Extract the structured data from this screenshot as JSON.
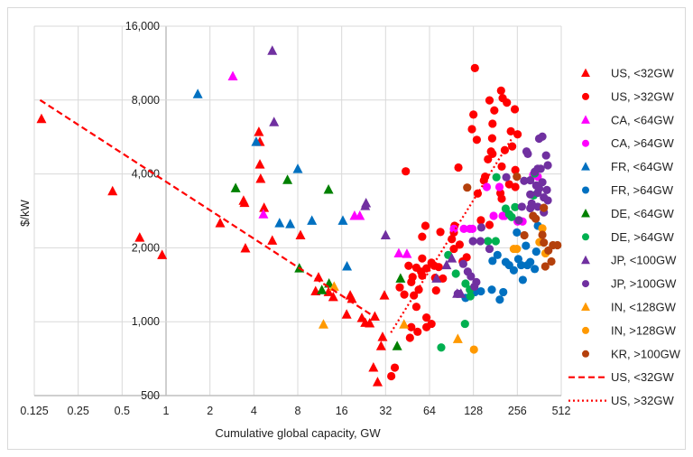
{
  "chart_data": {
    "type": "scatter",
    "title": "",
    "xlabel": "Cumulative global capacity, GW",
    "ylabel": "$/kW",
    "x_scale": "log2",
    "y_scale": "log2",
    "xlim": [
      0.125,
      512
    ],
    "ylim": [
      500,
      16000
    ],
    "x_ticks": [
      "0.125",
      "0.25",
      "0.5",
      "1",
      "2",
      "4",
      "8",
      "16",
      "32",
      "64",
      "128",
      "256",
      "512"
    ],
    "x_tick_values": [
      0.125,
      0.25,
      0.5,
      1,
      2,
      4,
      8,
      16,
      32,
      64,
      128,
      256,
      512
    ],
    "y_ticks": [
      "500",
      "1,000",
      "2,000",
      "4,000",
      "8,000",
      "16,000"
    ],
    "y_tick_values": [
      500,
      1000,
      2000,
      4000,
      8000,
      16000
    ],
    "grid": true,
    "legend_position": "right",
    "series": [
      {
        "name": "US, <32GW",
        "marker": "triangle",
        "color": "#FF0000",
        "points": [
          [
            0.14,
            6700
          ],
          [
            0.43,
            3400
          ],
          [
            0.66,
            2200
          ],
          [
            0.94,
            1870
          ],
          [
            2.35,
            2520
          ],
          [
            3.4,
            3110
          ],
          [
            3.45,
            3050
          ],
          [
            3.5,
            1990
          ],
          [
            4.33,
            5930
          ],
          [
            4.4,
            5400
          ],
          [
            4.4,
            4370
          ],
          [
            4.45,
            3820
          ],
          [
            4.7,
            2910
          ],
          [
            5.35,
            2140
          ],
          [
            8.35,
            2250
          ],
          [
            11.1,
            1515
          ],
          [
            10.6,
            1330
          ],
          [
            13,
            1320
          ],
          [
            14,
            1260
          ],
          [
            18.3,
            1280
          ],
          [
            18.8,
            1240
          ],
          [
            17.3,
            1070
          ],
          [
            22,
            1035
          ],
          [
            23.2,
            990
          ],
          [
            24.9,
            985
          ],
          [
            27,
            1050
          ],
          [
            26.4,
            650
          ],
          [
            28.2,
            567
          ],
          [
            31.4,
            1280
          ],
          [
            30.5,
            866
          ],
          [
            29.8,
            795
          ]
        ]
      },
      {
        "name": "US, >32GW",
        "marker": "circle",
        "color": "#FF0000",
        "points": [
          [
            131,
            10800
          ],
          [
            198,
            8740
          ],
          [
            203,
            8150
          ],
          [
            217,
            7810
          ],
          [
            165,
            7980
          ],
          [
            246,
            7340
          ],
          [
            178,
            7260
          ],
          [
            128,
            6980
          ],
          [
            173,
            6410
          ],
          [
            125,
            6090
          ],
          [
            135,
            5510
          ],
          [
            172,
            5590
          ],
          [
            231,
            5970
          ],
          [
            257,
            5800
          ],
          [
            210,
            5000
          ],
          [
            236,
            5180
          ],
          [
            169,
            4940
          ],
          [
            173,
            4830
          ],
          [
            161,
            4590
          ],
          [
            200,
            4290
          ],
          [
            248,
            4150
          ],
          [
            101,
            4250
          ],
          [
            44,
            4100
          ],
          [
            154,
            3900
          ],
          [
            151,
            3760
          ],
          [
            225,
            3630
          ],
          [
            248,
            3540
          ],
          [
            196,
            3340
          ],
          [
            200,
            3170
          ],
          [
            137,
            3330
          ],
          [
            144,
            2590
          ],
          [
            165,
            2480
          ],
          [
            60,
            2460
          ],
          [
            57,
            2220
          ],
          [
            76,
            2320
          ],
          [
            95,
            2460
          ],
          [
            94,
            2310
          ],
          [
            91,
            2170
          ],
          [
            103,
            2060
          ],
          [
            94,
            1980
          ],
          [
            115,
            1830
          ],
          [
            108,
            1760
          ],
          [
            57,
            1810
          ],
          [
            46,
            1690
          ],
          [
            52,
            1660
          ],
          [
            66,
            1740
          ],
          [
            69,
            1690
          ],
          [
            74,
            1670
          ],
          [
            61,
            1650
          ],
          [
            56,
            1600
          ],
          [
            49,
            1520
          ],
          [
            57,
            1540
          ],
          [
            70,
            1510
          ],
          [
            79,
            1500
          ],
          [
            48,
            1450
          ],
          [
            54,
            1350
          ],
          [
            40,
            1380
          ],
          [
            43,
            1290
          ],
          [
            50,
            1280
          ],
          [
            71,
            1340
          ],
          [
            52,
            1150
          ],
          [
            61,
            1040
          ],
          [
            66,
            980
          ],
          [
            61,
            950
          ],
          [
            48,
            950
          ],
          [
            53,
            910
          ],
          [
            47,
            860
          ],
          [
            37,
            650
          ],
          [
            35,
            600
          ]
        ]
      },
      {
        "name": "CA, <64GW",
        "marker": "triangle",
        "color": "#FF00FF",
        "points": [
          [
            2.87,
            10000
          ],
          [
            4.65,
            2740
          ],
          [
            19.6,
            2700
          ],
          [
            21.3,
            2700
          ],
          [
            39.4,
            1900
          ],
          [
            44.8,
            1890
          ]
        ]
      },
      {
        "name": "CA, >64GW",
        "marker": "circle",
        "color": "#FF00FF",
        "points": [
          [
            329,
            3970
          ],
          [
            353,
            3900
          ],
          [
            158,
            3540
          ],
          [
            193,
            3540
          ],
          [
            176,
            2700
          ],
          [
            203,
            2700
          ],
          [
            210,
            2700
          ],
          [
            257,
            2560
          ],
          [
            278,
            2560
          ],
          [
            94,
            2390
          ],
          [
            110,
            2390
          ],
          [
            121,
            2390
          ],
          [
            126,
            2390
          ]
        ]
      },
      {
        "name": "FR, <64GW",
        "marker": "triangle",
        "color": "#0070C0",
        "points": [
          [
            1.65,
            8460
          ],
          [
            4.15,
            5400
          ],
          [
            8.0,
            4190
          ],
          [
            6.0,
            2520
          ],
          [
            7.1,
            2500
          ],
          [
            10,
            2580
          ],
          [
            16.3,
            2580
          ],
          [
            17.4,
            1680
          ]
        ]
      },
      {
        "name": "FR, >64GW",
        "marker": "circle",
        "color": "#0070C0",
        "points": [
          [
            354,
            2460
          ],
          [
            254,
            2310
          ],
          [
            293,
            2040
          ],
          [
            345,
            1930
          ],
          [
            187,
            1870
          ],
          [
            173,
            1770
          ],
          [
            225,
            1700
          ],
          [
            272,
            1700
          ],
          [
            314,
            1750
          ],
          [
            337,
            1640
          ],
          [
            242,
            1620
          ],
          [
            279,
            1480
          ],
          [
            171,
            1350
          ],
          [
            205,
            1320
          ],
          [
            194,
            1230
          ],
          [
            144,
            1330
          ],
          [
            131,
            1320
          ],
          [
            113,
            1250
          ],
          [
            213,
            1750
          ],
          [
            260,
            1800
          ],
          [
            300,
            1700
          ]
        ]
      },
      {
        "name": "DE, <64GW",
        "marker": "triangle",
        "color": "#008000",
        "points": [
          [
            3.0,
            3500
          ],
          [
            6.8,
            3780
          ],
          [
            13,
            3450
          ],
          [
            8.2,
            1650
          ],
          [
            11.7,
            1345
          ],
          [
            13.1,
            1430
          ],
          [
            40.5,
            1500
          ],
          [
            38.4,
            795
          ]
        ]
      },
      {
        "name": "DE, >64GW",
        "marker": "circle",
        "color": "#00B050",
        "points": [
          [
            184,
            3880
          ],
          [
            337,
            4020
          ],
          [
            331,
            3270
          ],
          [
            213,
            2890
          ],
          [
            225,
            2740
          ],
          [
            234,
            2670
          ],
          [
            247,
            2930
          ],
          [
            161,
            2130
          ],
          [
            182,
            2130
          ],
          [
            86,
            1870
          ],
          [
            97,
            1570
          ],
          [
            113,
            1430
          ],
          [
            121,
            1350
          ],
          [
            122,
            1270
          ],
          [
            112,
            980
          ],
          [
            77,
            785
          ]
        ]
      },
      {
        "name": "JP, <100GW",
        "marker": "triangle",
        "color": "#7030A0",
        "points": [
          [
            5.35,
            12700
          ],
          [
            5.5,
            6500
          ],
          [
            23.5,
            3040
          ],
          [
            23.2,
            2960
          ],
          [
            32,
            2250
          ],
          [
            91,
            1810
          ],
          [
            83.7,
            1700
          ],
          [
            71.5,
            1500
          ],
          [
            99,
            1300
          ],
          [
            105,
            1300
          ]
        ]
      },
      {
        "name": "JP, >100GW",
        "marker": "circle",
        "color": "#7030A0",
        "points": [
          [
            361,
            5570
          ],
          [
            380,
            5680
          ],
          [
            296,
            4940
          ],
          [
            302,
            4830
          ],
          [
            403,
            4760
          ],
          [
            414,
            4340
          ],
          [
            353,
            4200
          ],
          [
            337,
            4080
          ],
          [
            370,
            4200
          ],
          [
            215,
            3880
          ],
          [
            285,
            3750
          ],
          [
            314,
            3770
          ],
          [
            380,
            3700
          ],
          [
            345,
            3590
          ],
          [
            361,
            3490
          ],
          [
            408,
            3440
          ],
          [
            314,
            3300
          ],
          [
            353,
            3350
          ],
          [
            389,
            3210
          ],
          [
            414,
            3120
          ],
          [
            321,
            3030
          ],
          [
            275,
            2940
          ],
          [
            353,
            2940
          ],
          [
            314,
            2900
          ],
          [
            389,
            2790
          ],
          [
            262,
            2590
          ],
          [
            145,
            2420
          ],
          [
            127,
            2130
          ],
          [
            143,
            2130
          ],
          [
            165,
            1980
          ],
          [
            109,
            1720
          ],
          [
            117,
            1600
          ],
          [
            123,
            1530
          ],
          [
            134,
            1450
          ],
          [
            130,
            1390
          ],
          [
            100,
            1300
          ]
        ]
      },
      {
        "name": "IN, <128GW",
        "marker": "triangle",
        "color": "#FF9900",
        "points": [
          [
            12,
            975
          ],
          [
            14.2,
            1390
          ],
          [
            42.8,
            975
          ],
          [
            100,
            850
          ]
        ]
      },
      {
        "name": "IN, >128GW",
        "marker": "circle",
        "color": "#FF9900",
        "points": [
          [
            380,
            2400
          ],
          [
            363,
            2110
          ],
          [
            242,
            1980
          ],
          [
            254,
            1980
          ],
          [
            399,
            1900
          ],
          [
            129,
            770
          ]
        ]
      },
      {
        "name": "KR, >100GW",
        "marker": "circle",
        "color": "#B4400C",
        "points": [
          [
            254,
            3900
          ],
          [
            116,
            3520
          ],
          [
            328,
            2700
          ],
          [
            342,
            2630
          ],
          [
            389,
            2910
          ],
          [
            380,
            2260
          ],
          [
            286,
            2250
          ],
          [
            389,
            2100
          ],
          [
            449,
            2050
          ],
          [
            482,
            2050
          ],
          [
            418,
            1950
          ],
          [
            438,
            1760
          ],
          [
            398,
            1680
          ]
        ]
      },
      {
        "name": "US, <32GW",
        "marker": "dashed-line",
        "color": "#FF0000",
        "points": [
          [
            0.137,
            8000
          ],
          [
            28,
            1030
          ]
        ]
      },
      {
        "name": "US, >32GW",
        "marker": "dotted-line",
        "color": "#FF0000",
        "points": [
          [
            34.8,
            903
          ],
          [
            237,
            5630
          ]
        ]
      }
    ]
  }
}
